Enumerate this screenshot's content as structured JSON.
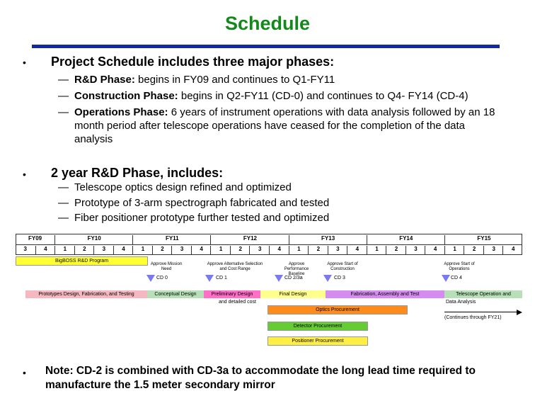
{
  "title": "Schedule",
  "bullet1": {
    "text": "Project Schedule includes three major phases:",
    "items": [
      {
        "bold": "R&D Phase:",
        "rest": " begins in FY09 and continues to Q1-FY11"
      },
      {
        "bold": "Construction Phase:",
        "rest": " begins in Q2-FY11 (CD-0) and continues to Q4- FY14 (CD-4)"
      },
      {
        "bold": "Operations Phase:",
        "rest": " 6 years of instrument operations with data analysis followed by an 18 month period after telescope operations have ceased for the completion of the data analysis"
      }
    ]
  },
  "bullet2": {
    "text": "2 year R&D Phase, includes:",
    "items": [
      "Telescope optics design refined and optimized",
      "Prototype of 3-arm spectrograph fabricated and tested",
      "Fiber positioner prototype further tested and optimized"
    ]
  },
  "bullet3": {
    "text": "Note: CD-2 is combined with CD-3a to accommodate the long lead time required to manufacture the 1.5 meter secondary mirror"
  },
  "gantt": {
    "years": [
      "FY09",
      "FY10",
      "FY11",
      "FY12",
      "FY13",
      "FY14",
      "FY15"
    ],
    "quarters": [
      "3",
      "4",
      "1",
      "2",
      "3",
      "4",
      "1",
      "2",
      "3",
      "4",
      "1",
      "2",
      "3",
      "4",
      "1",
      "2",
      "3",
      "4",
      "1",
      "2",
      "3",
      "4",
      "1",
      "2",
      "3",
      "4"
    ],
    "rnd_bar": "BigBOSS R&D Program",
    "milestones": [
      {
        "label": "Approve Mission Need",
        "cd": "CD 0"
      },
      {
        "label": "Approve Alternative Selection and Cost Range",
        "cd": "CD 1"
      },
      {
        "label": "Approve Performance Baseline",
        "cd": "CD 2/3a"
      },
      {
        "label": "Approve Start of Construction",
        "cd": "CD 3"
      },
      {
        "label": "Approve Start of Operations",
        "cd": "CD 4"
      }
    ],
    "phase_bars": [
      {
        "label": "Prototypes Design, Fabrication, and Testing",
        "color": "#f5b8c0"
      },
      {
        "label": "Conceptual Design",
        "color": "#b8e0b8"
      },
      {
        "label": "Preliminary Design",
        "color": "#ff6ec7"
      },
      {
        "label": "Final Design",
        "color": "#ffff8c"
      },
      {
        "label": "Fabrication, Assembly and Test",
        "color": "#d58cf0"
      },
      {
        "label": "Telescope Operation and",
        "color": "#b8e0b8"
      }
    ],
    "detailed_cost": "and detailed cost",
    "data_analysis": "Data Analysis",
    "continues": "(Continues through FY21)",
    "procurements": [
      {
        "label": "Optics Procurement",
        "color": "#ff8c1a"
      },
      {
        "label": "Detector Procurement",
        "color": "#66cc33"
      },
      {
        "label": "Positioner Procurement",
        "color": "#ffee44"
      }
    ]
  }
}
